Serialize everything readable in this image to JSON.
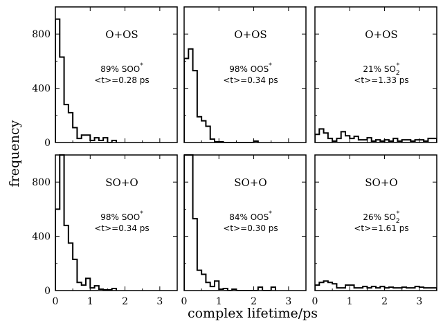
{
  "figure": {
    "ylabel": "frequency",
    "xlabel": "complex lifetime/ps"
  },
  "chart_data": [
    {
      "type": "bar",
      "panel_row": 1,
      "panel_col": 1,
      "title": "O+OS",
      "annotation_pct": "89% SOO*",
      "annotation_mean": "<t>=0.28 ps",
      "bin_width": 0.125,
      "x_start": 0.0,
      "values": [
        910,
        630,
        280,
        220,
        110,
        30,
        55,
        55,
        15,
        35,
        15,
        35,
        0,
        15
      ],
      "xlim": [
        0,
        3.5
      ],
      "ylim": [
        0,
        1000
      ],
      "xticks": [
        0,
        1,
        2,
        3
      ],
      "yticks": [
        0,
        400,
        800
      ],
      "show_xtick_labels": false,
      "show_ytick_labels": true
    },
    {
      "type": "bar",
      "panel_row": 1,
      "panel_col": 2,
      "title": "O+OS",
      "annotation_pct": "98% OOS*",
      "annotation_mean": "<t>=0.34 ps",
      "bin_width": 0.125,
      "x_start": 0.0,
      "values": [
        620,
        690,
        530,
        190,
        160,
        120,
        25,
        5,
        5,
        0,
        0,
        0,
        0,
        0,
        0,
        0,
        10
      ],
      "xlim": [
        0,
        3.5
      ],
      "ylim": [
        0,
        1000
      ],
      "xticks": [
        0,
        1,
        2,
        3
      ],
      "yticks": [
        0,
        400,
        800
      ],
      "show_xtick_labels": false,
      "show_ytick_labels": false
    },
    {
      "type": "bar",
      "panel_row": 1,
      "panel_col": 3,
      "title": "O+OS",
      "annotation_pct": "21% SO2*",
      "annotation_mean": "<t>=1.33 ps",
      "bin_width": 0.125,
      "x_start": 0.0,
      "values": [
        60,
        100,
        70,
        30,
        10,
        30,
        80,
        50,
        30,
        45,
        20,
        20,
        35,
        10,
        20,
        10,
        20,
        10,
        30,
        10,
        20,
        20,
        10,
        20,
        20,
        10,
        30,
        30
      ],
      "xlim": [
        0,
        3.5
      ],
      "ylim": [
        0,
        1000
      ],
      "xticks": [
        0,
        1,
        2,
        3
      ],
      "yticks": [
        0,
        400,
        800
      ],
      "show_xtick_labels": false,
      "show_ytick_labels": false
    },
    {
      "type": "bar",
      "panel_row": 2,
      "panel_col": 1,
      "title": "SO+O",
      "annotation_pct": "98% SOO*",
      "annotation_mean": "<t>=0.34 ps",
      "bin_width": 0.125,
      "x_start": 0.0,
      "values": [
        600,
        1020,
        480,
        350,
        230,
        60,
        40,
        90,
        20,
        35,
        10,
        5,
        5,
        15
      ],
      "xlim": [
        0,
        3.5
      ],
      "ylim": [
        0,
        1000
      ],
      "xticks": [
        0,
        1,
        2,
        3
      ],
      "yticks": [
        0,
        400,
        800
      ],
      "show_xtick_labels": true,
      "show_ytick_labels": true
    },
    {
      "type": "bar",
      "panel_row": 2,
      "panel_col": 2,
      "title": "SO+O",
      "annotation_pct": "84% OOS*",
      "annotation_mean": "<t>=0.30 ps",
      "bin_width": 0.125,
      "x_start": 0.0,
      "values": [
        1000,
        1000,
        530,
        150,
        120,
        60,
        30,
        70,
        10,
        15,
        0,
        10,
        0,
        0,
        0,
        0,
        0,
        25,
        0,
        0,
        25
      ],
      "xlim": [
        0,
        3.5
      ],
      "ylim": [
        0,
        1000
      ],
      "xticks": [
        0,
        1,
        2,
        3
      ],
      "yticks": [
        0,
        400,
        800
      ],
      "show_xtick_labels": true,
      "show_ytick_labels": false
    },
    {
      "type": "bar",
      "panel_row": 2,
      "panel_col": 3,
      "title": "SO+O",
      "annotation_pct": "26% SO2*",
      "annotation_mean": "<t>=1.61 ps",
      "bin_width": 0.125,
      "x_start": 0.0,
      "values": [
        40,
        60,
        70,
        60,
        50,
        20,
        20,
        40,
        40,
        20,
        20,
        30,
        20,
        30,
        20,
        30,
        20,
        25,
        20,
        20,
        25,
        20,
        20,
        30,
        25,
        20,
        20,
        20
      ],
      "xlim": [
        0,
        3.5
      ],
      "ylim": [
        0,
        1000
      ],
      "xticks": [
        0,
        1,
        2,
        3
      ],
      "yticks": [
        0,
        400,
        800
      ],
      "show_xtick_labels": true,
      "show_ytick_labels": false
    }
  ]
}
